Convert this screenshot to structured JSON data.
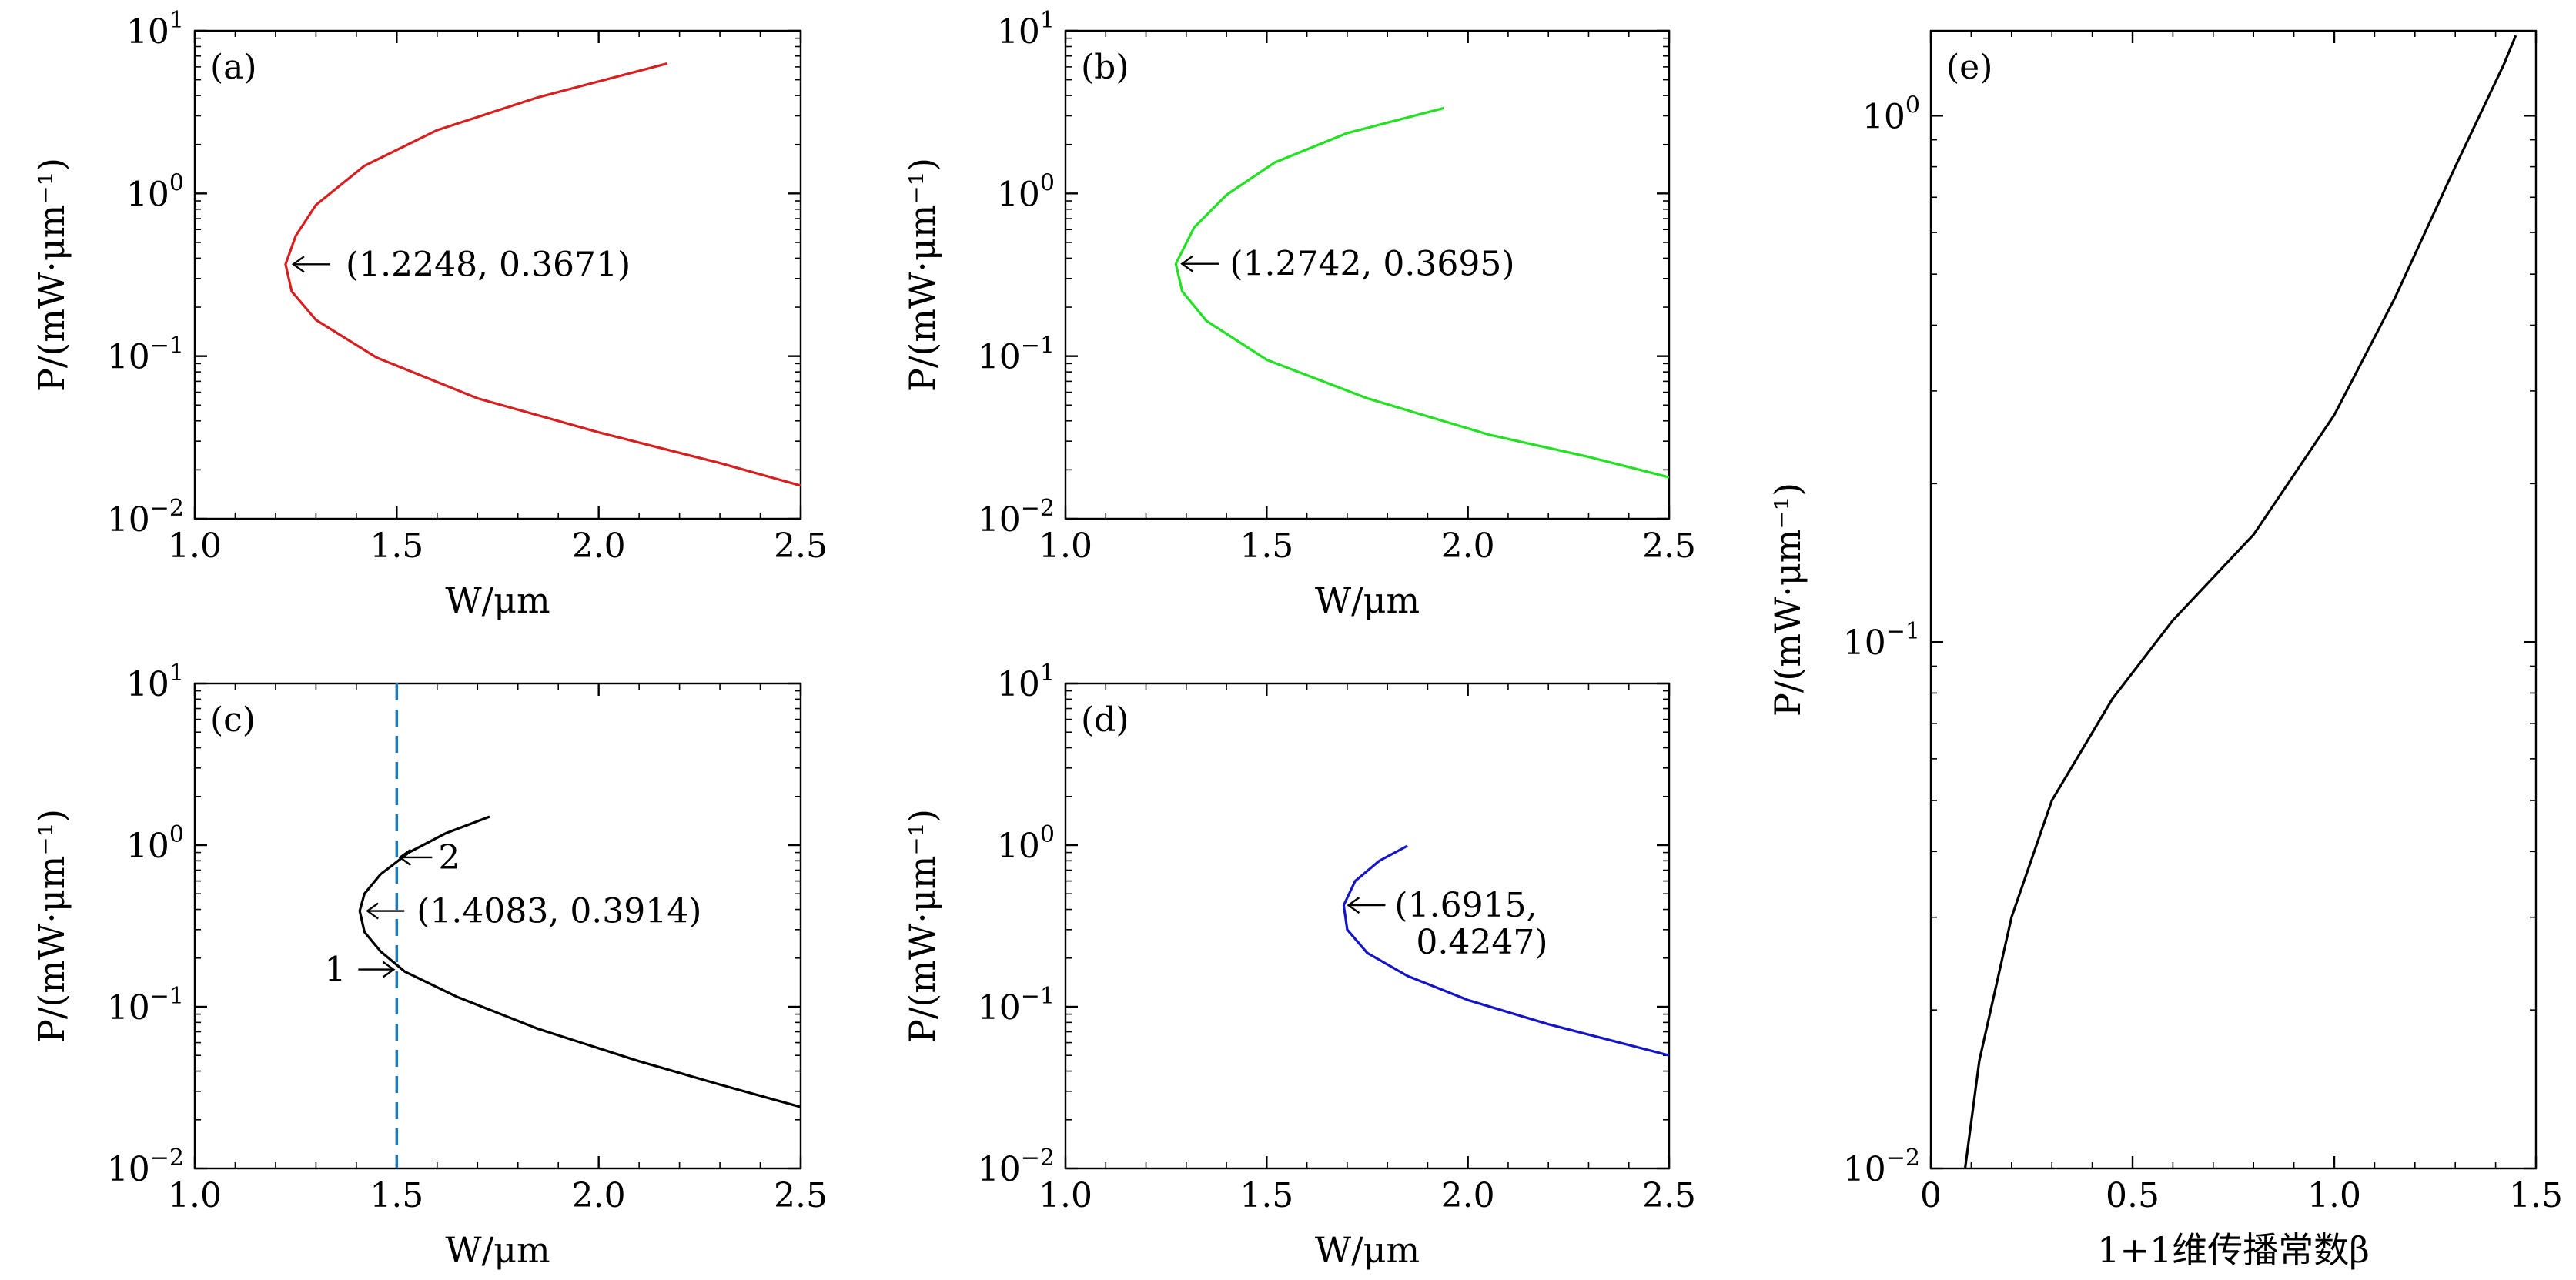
{
  "chart_data": [
    {
      "panel": "(a)",
      "type": "line",
      "xscale": "linear",
      "yscale": "log",
      "xlim": [
        1.0,
        2.5
      ],
      "ylim": [
        0.01,
        10
      ],
      "xticks": [
        "1.0",
        "1.5",
        "2.0",
        "2.5"
      ],
      "yticks": [
        {
          "base": "10",
          "exp": "−2"
        },
        {
          "base": "10",
          "exp": "−1"
        },
        {
          "base": "10",
          "exp": "0"
        },
        {
          "base": "10",
          "exp": "1"
        }
      ],
      "xlabel": "W/μm",
      "ylabel": "P/(mW·μm⁻¹)",
      "series": [
        {
          "name": "curve",
          "color": "#d62020",
          "x": [
            2.17,
            1.85,
            1.6,
            1.42,
            1.3,
            1.25,
            1.2248,
            1.24,
            1.3,
            1.45,
            1.7,
            2.0,
            2.3,
            2.5
          ],
          "y": [
            6.3,
            3.9,
            2.45,
            1.48,
            0.85,
            0.55,
            0.3671,
            0.25,
            0.167,
            0.098,
            0.055,
            0.034,
            0.022,
            0.016
          ]
        }
      ],
      "annotations": [
        {
          "text": "(1.2248, 0.3671)",
          "x": 1.2248,
          "y": 0.3671
        }
      ]
    },
    {
      "panel": "(b)",
      "type": "line",
      "xscale": "linear",
      "yscale": "log",
      "xlim": [
        1.0,
        2.5
      ],
      "ylim": [
        0.01,
        10
      ],
      "xticks": [
        "1.0",
        "1.5",
        "2.0",
        "2.5"
      ],
      "yticks": [
        {
          "base": "10",
          "exp": "−2"
        },
        {
          "base": "10",
          "exp": "−1"
        },
        {
          "base": "10",
          "exp": "0"
        },
        {
          "base": "10",
          "exp": "1"
        }
      ],
      "xlabel": "W/μm",
      "ylabel": "P/(mW·μm⁻¹)",
      "series": [
        {
          "name": "curve",
          "color": "#22e022",
          "x": [
            1.94,
            1.7,
            1.52,
            1.4,
            1.32,
            1.2742,
            1.29,
            1.35,
            1.5,
            1.75,
            2.05,
            2.3,
            2.5
          ],
          "y": [
            3.35,
            2.35,
            1.55,
            0.98,
            0.62,
            0.3695,
            0.25,
            0.165,
            0.095,
            0.055,
            0.033,
            0.024,
            0.018
          ]
        }
      ],
      "annotations": [
        {
          "text": "(1.2742, 0.3695)",
          "x": 1.2742,
          "y": 0.3695
        }
      ]
    },
    {
      "panel": "(c)",
      "type": "line",
      "xscale": "linear",
      "yscale": "log",
      "xlim": [
        1.0,
        2.5
      ],
      "ylim": [
        0.01,
        10
      ],
      "xticks": [
        "1.0",
        "1.5",
        "2.0",
        "2.5"
      ],
      "yticks": [
        {
          "base": "10",
          "exp": "−2"
        },
        {
          "base": "10",
          "exp": "−1"
        },
        {
          "base": "10",
          "exp": "0"
        },
        {
          "base": "10",
          "exp": "1"
        }
      ],
      "xlabel": "W/μm",
      "ylabel": "P/(mW·μm⁻¹)",
      "series": [
        {
          "name": "curve",
          "color": "#000000",
          "x": [
            1.73,
            1.62,
            1.53,
            1.46,
            1.42,
            1.4083,
            1.42,
            1.46,
            1.52,
            1.65,
            1.85,
            2.1,
            2.3,
            2.5
          ],
          "y": [
            1.5,
            1.18,
            0.9,
            0.66,
            0.5,
            0.3914,
            0.29,
            0.22,
            0.165,
            0.115,
            0.073,
            0.046,
            0.033,
            0.024
          ]
        }
      ],
      "vline": {
        "x": 1.5,
        "color": "#1f77b4",
        "style": "dashed"
      },
      "annotations": [
        {
          "text": "(1.4083, 0.3914)",
          "x": 1.4083,
          "y": 0.3914
        },
        {
          "text": "2",
          "x": 1.5,
          "y": 0.84
        },
        {
          "text": "1",
          "x": 1.5,
          "y": 0.17
        }
      ]
    },
    {
      "panel": "(d)",
      "type": "line",
      "xscale": "linear",
      "yscale": "log",
      "xlim": [
        1.0,
        2.5
      ],
      "ylim": [
        0.01,
        10
      ],
      "xticks": [
        "1.0",
        "1.5",
        "2.0",
        "2.5"
      ],
      "yticks": [
        {
          "base": "10",
          "exp": "−2"
        },
        {
          "base": "10",
          "exp": "−1"
        },
        {
          "base": "10",
          "exp": "0"
        },
        {
          "base": "10",
          "exp": "1"
        }
      ],
      "xlabel": "W/μm",
      "ylabel": "P/(mW·μm⁻¹)",
      "series": [
        {
          "name": "curve",
          "color": "#1515c8",
          "x": [
            1.85,
            1.78,
            1.72,
            1.6915,
            1.7,
            1.75,
            1.85,
            2.0,
            2.2,
            2.4,
            2.5
          ],
          "y": [
            0.99,
            0.8,
            0.6,
            0.4247,
            0.3,
            0.215,
            0.155,
            0.11,
            0.078,
            0.058,
            0.05
          ]
        }
      ],
      "annotations": [
        {
          "text": "(1.6915,",
          "text2": "0.4247)",
          "x": 1.6915,
          "y": 0.4247
        }
      ]
    },
    {
      "panel": "(e)",
      "type": "line",
      "xscale": "linear",
      "yscale": "log",
      "xlim": [
        0,
        1.5
      ],
      "ylim": [
        0.01,
        1.45
      ],
      "xticks": [
        "0",
        "0.5",
        "1.0",
        "1.5"
      ],
      "yticks": [
        {
          "base": "10",
          "exp": "−2"
        },
        {
          "base": "10",
          "exp": "−1"
        },
        {
          "base": "10",
          "exp": "0"
        }
      ],
      "xlabel": "1+1维传播常数β",
      "ylabel": "P/(mW·μm⁻¹)",
      "series": [
        {
          "name": "curve",
          "color": "#000000",
          "x": [
            0.085,
            0.12,
            0.2,
            0.3,
            0.45,
            0.6,
            0.8,
            1.0,
            1.15,
            1.3,
            1.42,
            1.45
          ],
          "y": [
            0.01,
            0.016,
            0.03,
            0.05,
            0.078,
            0.11,
            0.16,
            0.27,
            0.45,
            0.8,
            1.25,
            1.42
          ]
        }
      ],
      "annotations": []
    }
  ]
}
